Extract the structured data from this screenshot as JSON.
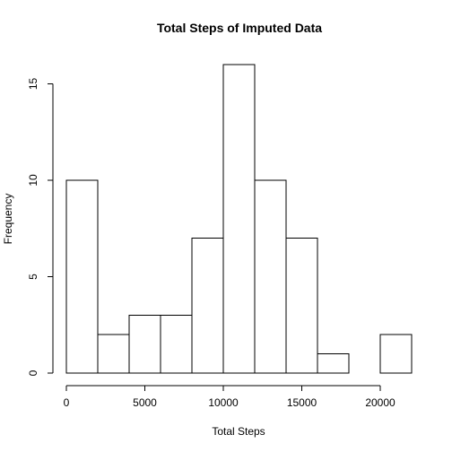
{
  "chart_data": {
    "type": "bar",
    "title": "Total Steps of Imputed Data",
    "xlabel": "Total Steps",
    "ylabel": "Frequency",
    "bins": [
      {
        "start": 0,
        "end": 2000,
        "value": 10
      },
      {
        "start": 2000,
        "end": 4000,
        "value": 2
      },
      {
        "start": 4000,
        "end": 6000,
        "value": 3
      },
      {
        "start": 6000,
        "end": 8000,
        "value": 3
      },
      {
        "start": 8000,
        "end": 10000,
        "value": 7
      },
      {
        "start": 10000,
        "end": 12000,
        "value": 16
      },
      {
        "start": 12000,
        "end": 14000,
        "value": 10
      },
      {
        "start": 14000,
        "end": 16000,
        "value": 7
      },
      {
        "start": 16000,
        "end": 18000,
        "value": 1
      },
      {
        "start": 18000,
        "end": 20000,
        "value": 0
      },
      {
        "start": 20000,
        "end": 22000,
        "value": 2
      }
    ],
    "xlim": [
      0,
      22000
    ],
    "ylim": [
      0,
      16
    ],
    "x_ticks": [
      0,
      5000,
      10000,
      15000,
      20000
    ],
    "x_tick_labels": [
      "0",
      "5000",
      "10000",
      "15000",
      "20000"
    ],
    "y_ticks": [
      0,
      5,
      10,
      15
    ],
    "y_tick_labels": [
      "0",
      "5",
      "10",
      "15"
    ],
    "grid": false,
    "colors": {
      "bar_fill": "#ffffff",
      "bar_stroke": "#000000",
      "axis": "#000000",
      "text": "#000000"
    }
  }
}
